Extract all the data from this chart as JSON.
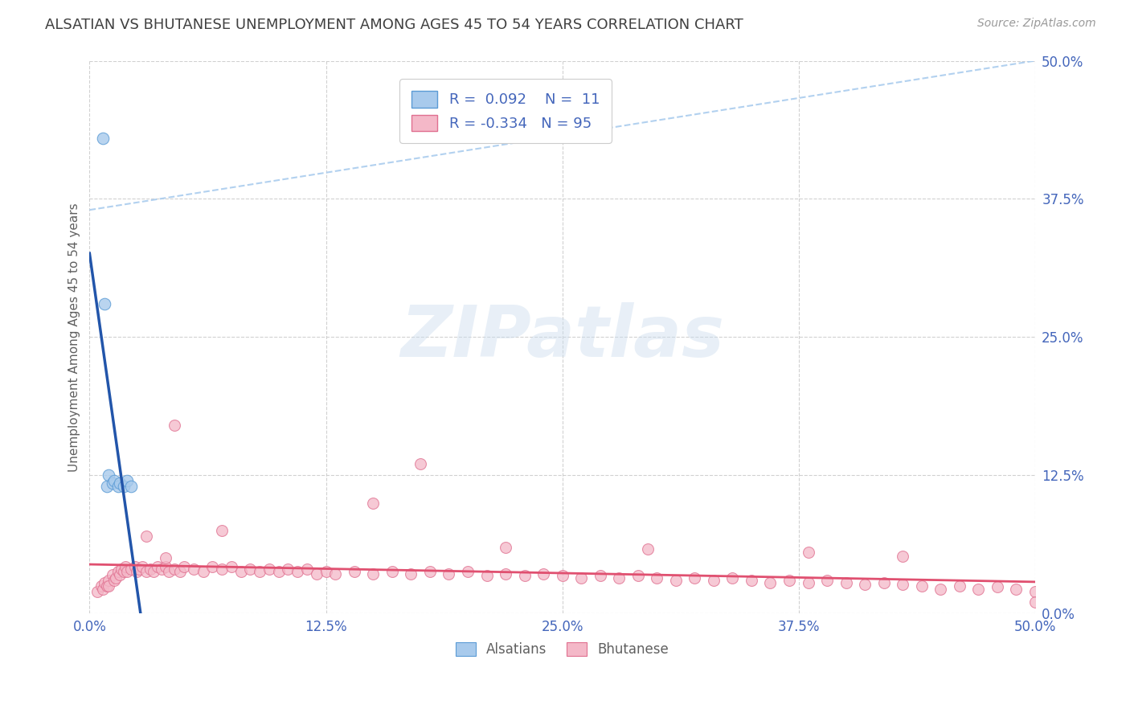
{
  "title": "ALSATIAN VS BHUTANESE UNEMPLOYMENT AMONG AGES 45 TO 54 YEARS CORRELATION CHART",
  "source": "Source: ZipAtlas.com",
  "ylabel": "Unemployment Among Ages 45 to 54 years",
  "xlim": [
    0.0,
    0.5
  ],
  "ylim": [
    0.0,
    0.5
  ],
  "xticks": [
    0.0,
    0.125,
    0.25,
    0.375,
    0.5
  ],
  "yticks": [
    0.0,
    0.125,
    0.25,
    0.375,
    0.5
  ],
  "xticklabels": [
    "0.0%",
    "12.5%",
    "25.0%",
    "37.5%",
    "50.0%"
  ],
  "yticklabels": [
    "0.0%",
    "12.5%",
    "25.0%",
    "37.5%",
    "50.0%"
  ],
  "alsatian_color": "#A8CAEC",
  "alsatian_edge": "#5B9BD5",
  "bhutanese_color": "#F4B8C8",
  "bhutanese_edge": "#E07090",
  "trend_alsatian_color": "#2255AA",
  "trend_bhutanese_color": "#E05070",
  "trend_dashed_color": "#AACCEE",
  "R_alsatian": 0.092,
  "N_alsatian": 11,
  "R_bhutanese": -0.334,
  "N_bhutanese": 95,
  "legend_label_alsatian": "Alsatians",
  "legend_label_bhutanese": "Bhutanese",
  "watermark_text": "ZIPatlas",
  "background_color": "#FFFFFF",
  "grid_color": "#CCCCCC",
  "title_color": "#404040",
  "axis_label_color": "#606060",
  "tick_color": "#4466BB",
  "legend_text_color": "#4466BB",
  "als_x": [
    0.007,
    0.009,
    0.01,
    0.012,
    0.013,
    0.015,
    0.016,
    0.018,
    0.02,
    0.022,
    0.008
  ],
  "als_y": [
    0.43,
    0.115,
    0.125,
    0.118,
    0.12,
    0.115,
    0.118,
    0.115,
    0.12,
    0.115,
    0.28
  ],
  "bhu_x": [
    0.004,
    0.006,
    0.007,
    0.008,
    0.009,
    0.01,
    0.01,
    0.012,
    0.013,
    0.014,
    0.015,
    0.016,
    0.017,
    0.018,
    0.019,
    0.02,
    0.022,
    0.024,
    0.025,
    0.026,
    0.028,
    0.03,
    0.032,
    0.034,
    0.036,
    0.038,
    0.04,
    0.042,
    0.045,
    0.048,
    0.05,
    0.055,
    0.06,
    0.065,
    0.07,
    0.075,
    0.08,
    0.085,
    0.09,
    0.095,
    0.1,
    0.105,
    0.11,
    0.115,
    0.12,
    0.125,
    0.13,
    0.14,
    0.15,
    0.16,
    0.17,
    0.18,
    0.19,
    0.2,
    0.21,
    0.22,
    0.23,
    0.24,
    0.25,
    0.26,
    0.27,
    0.28,
    0.29,
    0.3,
    0.31,
    0.32,
    0.33,
    0.34,
    0.35,
    0.36,
    0.37,
    0.38,
    0.39,
    0.4,
    0.41,
    0.42,
    0.43,
    0.44,
    0.45,
    0.46,
    0.47,
    0.48,
    0.49,
    0.5,
    0.045,
    0.175,
    0.22,
    0.295,
    0.38,
    0.43,
    0.15,
    0.07,
    0.04,
    0.03,
    0.5
  ],
  "bhu_y": [
    0.02,
    0.025,
    0.022,
    0.028,
    0.025,
    0.03,
    0.025,
    0.035,
    0.03,
    0.032,
    0.038,
    0.035,
    0.04,
    0.038,
    0.042,
    0.038,
    0.04,
    0.042,
    0.038,
    0.04,
    0.042,
    0.038,
    0.04,
    0.038,
    0.042,
    0.04,
    0.042,
    0.038,
    0.04,
    0.038,
    0.042,
    0.04,
    0.038,
    0.042,
    0.04,
    0.042,
    0.038,
    0.04,
    0.038,
    0.04,
    0.038,
    0.04,
    0.038,
    0.04,
    0.036,
    0.038,
    0.036,
    0.038,
    0.036,
    0.038,
    0.036,
    0.038,
    0.036,
    0.038,
    0.034,
    0.036,
    0.034,
    0.036,
    0.034,
    0.032,
    0.034,
    0.032,
    0.034,
    0.032,
    0.03,
    0.032,
    0.03,
    0.032,
    0.03,
    0.028,
    0.03,
    0.028,
    0.03,
    0.028,
    0.026,
    0.028,
    0.026,
    0.025,
    0.022,
    0.025,
    0.022,
    0.024,
    0.022,
    0.02,
    0.17,
    0.135,
    0.06,
    0.058,
    0.055,
    0.052,
    0.1,
    0.075,
    0.05,
    0.07,
    0.01
  ]
}
